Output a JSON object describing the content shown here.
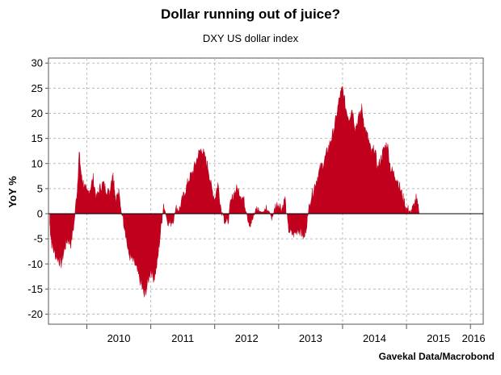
{
  "chart_data": {
    "type": "area",
    "title": "Dollar running out of juice?",
    "subtitle": "DXY US dollar index",
    "ylabel": "YoY %",
    "xlabel": "",
    "source": "Gavekal Data/Macrobond",
    "ylim": [
      -22,
      31
    ],
    "xlim": [
      2009.4,
      2016.2
    ],
    "yticks": [
      -20,
      -15,
      -10,
      -5,
      0,
      5,
      10,
      15,
      20,
      25,
      30
    ],
    "xtick_labels": [
      "2010",
      "2011",
      "2012",
      "2013",
      "2014",
      "2015",
      "2016"
    ],
    "grid": true,
    "color": "#c0001d",
    "series": [
      {
        "x": [
          2009.42,
          2009.45,
          2009.5,
          2009.55,
          2009.6,
          2009.65,
          2009.7,
          2009.75,
          2009.8,
          2009.85,
          2009.88,
          2009.92,
          2009.95,
          2010.0,
          2010.05,
          2010.1,
          2010.15,
          2010.2,
          2010.25,
          2010.3,
          2010.35,
          2010.4,
          2010.42,
          2010.45,
          2010.5,
          2010.55,
          2010.6,
          2010.65,
          2010.7,
          2010.75,
          2010.8,
          2010.85,
          2010.9,
          2010.95,
          2011.0,
          2011.05,
          2011.1,
          2011.15,
          2011.2,
          2011.25,
          2011.3,
          2011.35,
          2011.4,
          2011.45,
          2011.5,
          2011.55,
          2011.6,
          2011.65,
          2011.7,
          2011.75,
          2011.8,
          2011.85,
          2011.9,
          2011.95,
          2012.0,
          2012.05,
          2012.1,
          2012.15,
          2012.2,
          2012.25,
          2012.3,
          2012.35,
          2012.4,
          2012.45,
          2012.5,
          2012.55,
          2012.6,
          2012.65,
          2012.7,
          2012.75,
          2012.8,
          2012.85,
          2012.9,
          2012.95,
          2013.0,
          2013.05,
          2013.1,
          2013.15,
          2013.2,
          2013.25,
          2013.3,
          2013.35,
          2013.4,
          2013.45,
          2013.5,
          2013.55,
          2013.6,
          2013.65,
          2013.7,
          2013.75,
          2013.8,
          2013.85,
          2013.9,
          2013.95,
          2014.0,
          2014.05,
          2014.1,
          2014.15,
          2014.2,
          2014.25,
          2014.3,
          2014.35,
          2014.4,
          2014.45,
          2014.5,
          2014.55,
          2014.6,
          2014.65,
          2014.7,
          2014.75,
          2014.8,
          2014.85,
          2014.9,
          2014.95,
          2015.0,
          2015.05,
          2015.1,
          2015.15,
          2015.2,
          2015.25,
          2015.3,
          2015.35,
          2015.4,
          2015.45,
          2015.5,
          2015.55,
          2015.6,
          2015.65,
          2015.7,
          2015.75,
          2015.8,
          2015.85,
          2015.9,
          2015.95,
          2016.0,
          2016.05,
          2016.08
        ],
        "values": [
          -2,
          -6,
          -8,
          -9,
          -10,
          -7,
          -5,
          -6,
          -2,
          5,
          12,
          7,
          6,
          4,
          5,
          7,
          3,
          5,
          6,
          5,
          4,
          8,
          7,
          3,
          4,
          0,
          -3,
          -8,
          -9,
          -10,
          -12,
          -14,
          -16.5,
          -14,
          -11,
          -13,
          -10,
          -4,
          2,
          -1,
          -2,
          -1,
          1,
          1,
          3,
          5,
          7,
          8,
          10,
          12,
          13,
          11,
          9,
          5,
          3,
          6,
          1,
          -1,
          -2,
          2,
          4,
          5,
          4,
          3,
          0,
          -2,
          -1,
          1,
          0.5,
          0.3,
          1,
          0.5,
          -1,
          1.5,
          2,
          1,
          3,
          -3,
          -4,
          -4,
          -3,
          -3.5,
          -5,
          -1,
          3,
          5,
          7,
          9,
          10,
          12,
          14,
          16,
          19,
          23,
          25,
          21,
          19,
          21,
          17,
          19,
          21,
          17,
          15,
          12,
          13,
          9,
          11,
          13,
          14,
          9,
          8,
          7,
          5,
          3,
          1,
          0.5,
          1,
          3,
          0,
          0,
          0,
          0,
          0,
          0,
          0,
          0,
          0,
          0,
          0,
          0,
          0,
          0,
          0,
          0,
          0,
          0,
          0
        ]
      }
    ]
  }
}
